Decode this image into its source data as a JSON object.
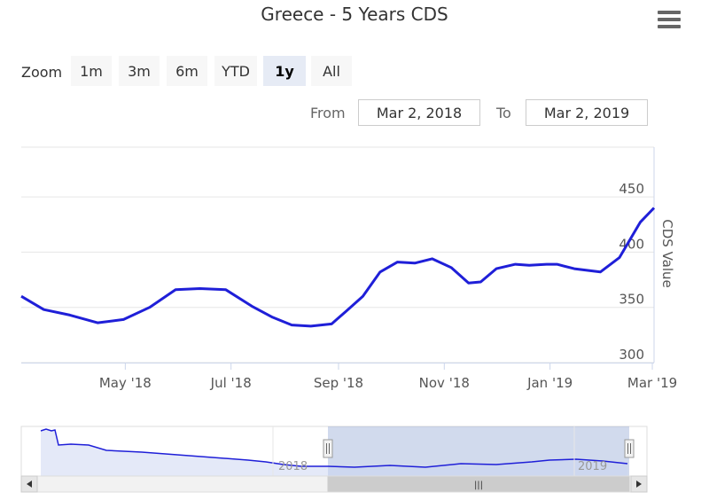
{
  "title": "Greece - 5 Years CDS",
  "menu_icon": "hamburger-icon",
  "zoom": {
    "label": "Zoom",
    "buttons": [
      "1m",
      "3m",
      "6m",
      "YTD",
      "1y",
      "All"
    ],
    "active": "1y"
  },
  "range": {
    "from_label": "From",
    "from_value": "Mar 2, 2018",
    "to_label": "To",
    "to_value": "Mar 2, 2019"
  },
  "chart_data": {
    "type": "line",
    "title": "Greece - 5 Years CDS",
    "ylabel": "CDS Value",
    "xlabel": "",
    "ylim": [
      300,
      495
    ],
    "yticks": [
      300,
      350,
      400,
      450
    ],
    "xticks": [
      "May '18",
      "Jul '18",
      "Sep '18",
      "Nov '18",
      "Jan '19",
      "Mar '19"
    ],
    "grid": true,
    "series": [
      {
        "x": [
          "2018-03-02",
          "2018-03-15",
          "2018-03-30",
          "2018-04-15",
          "2018-04-30",
          "2018-05-15",
          "2018-05-30",
          "2018-06-13",
          "2018-06-28",
          "2018-07-13",
          "2018-07-25",
          "2018-08-05",
          "2018-08-16",
          "2018-08-28",
          "2018-09-05",
          "2018-09-15",
          "2018-09-25",
          "2018-10-05",
          "2018-10-15",
          "2018-10-25",
          "2018-11-05",
          "2018-11-15",
          "2018-11-22",
          "2018-12-01",
          "2018-12-12",
          "2018-12-20",
          "2018-12-30",
          "2019-01-05",
          "2019-01-15",
          "2019-01-30",
          "2019-02-10",
          "2019-02-22",
          "2019-03-02"
        ],
        "values": [
          360,
          348,
          343,
          336,
          339,
          350,
          366,
          367,
          366,
          351,
          341,
          334,
          333,
          335,
          346,
          360,
          382,
          391,
          390,
          394,
          386,
          372,
          373,
          385,
          389,
          388,
          389,
          389,
          385,
          382,
          395,
          427,
          440
        ]
      }
    ]
  },
  "navigator": {
    "year_labels": [
      "2018",
      "2019"
    ],
    "scroll_label": "|||"
  }
}
